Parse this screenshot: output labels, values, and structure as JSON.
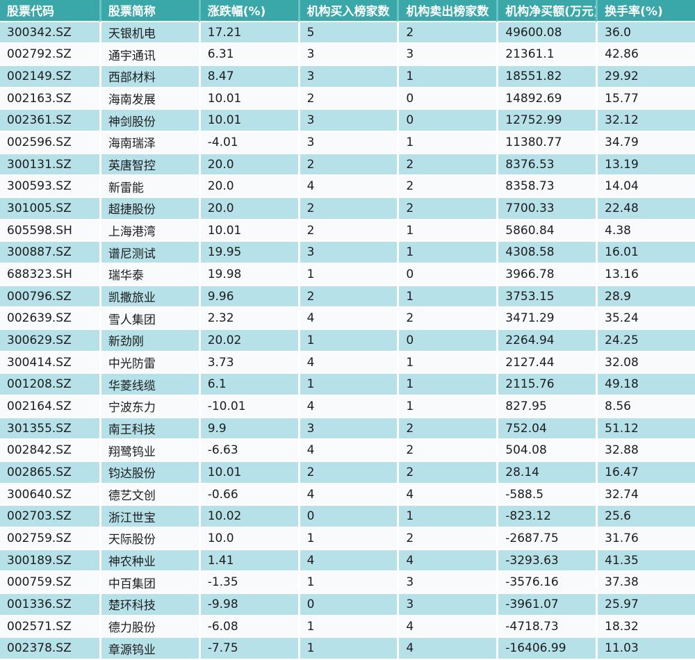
{
  "colors": {
    "header_bg": "#3aa7a8",
    "header_divider": "#6ec3c3",
    "row_alt_cyan": "#b6e1e9",
    "row_main_white": "#f8fafb",
    "separator": "#ffffff",
    "body_text": "#1c1c1c",
    "header_text": "#ffffff"
  },
  "chart_data": {
    "type": "table",
    "title": "",
    "columns": [
      "股票代码",
      "股票简称",
      "涨跌幅(%)",
      "机构买入榜家数",
      "机构卖出榜家数",
      "机构净买额(万元)",
      "换手率(%)"
    ],
    "rows": [
      [
        "300342.SZ",
        "天银机电",
        "17.21",
        "5",
        "2",
        "49600.08",
        "36.0"
      ],
      [
        "002792.SZ",
        "通宇通讯",
        "6.31",
        "3",
        "3",
        "21361.1",
        "42.86"
      ],
      [
        "002149.SZ",
        "西部材料",
        "8.47",
        "3",
        "1",
        "18551.82",
        "29.92"
      ],
      [
        "002163.SZ",
        "海南发展",
        "10.01",
        "2",
        "0",
        "14892.69",
        "15.77"
      ],
      [
        "002361.SZ",
        "神剑股份",
        "10.01",
        "3",
        "0",
        "12752.99",
        "32.12"
      ],
      [
        "002596.SZ",
        "海南瑞泽",
        "-4.01",
        "3",
        "1",
        "11380.77",
        "34.79"
      ],
      [
        "300131.SZ",
        "英唐智控",
        "20.0",
        "2",
        "2",
        "8376.53",
        "13.19"
      ],
      [
        "300593.SZ",
        "新雷能",
        "20.0",
        "4",
        "2",
        "8358.73",
        "14.04"
      ],
      [
        "301005.SZ",
        "超捷股份",
        "20.0",
        "2",
        "2",
        "7700.33",
        "22.48"
      ],
      [
        "605598.SH",
        "上海港湾",
        "10.01",
        "2",
        "1",
        "5860.84",
        "4.38"
      ],
      [
        "300887.SZ",
        "谱尼测试",
        "19.95",
        "3",
        "1",
        "4308.58",
        "16.01"
      ],
      [
        "688323.SH",
        "瑞华泰",
        "19.98",
        "1",
        "0",
        "3966.78",
        "13.16"
      ],
      [
        "000796.SZ",
        "凯撒旅业",
        "9.96",
        "2",
        "1",
        "3753.15",
        "28.9"
      ],
      [
        "002639.SZ",
        "雪人集团",
        "2.32",
        "4",
        "2",
        "3471.29",
        "35.24"
      ],
      [
        "300629.SZ",
        "新劲刚",
        "20.02",
        "1",
        "0",
        "2264.94",
        "24.25"
      ],
      [
        "300414.SZ",
        "中光防雷",
        "3.73",
        "4",
        "1",
        "2127.44",
        "32.08"
      ],
      [
        "001208.SZ",
        "华菱线缆",
        "6.1",
        "1",
        "1",
        "2115.76",
        "49.18"
      ],
      [
        "002164.SZ",
        "宁波东力",
        "-10.01",
        "4",
        "1",
        "827.95",
        "8.56"
      ],
      [
        "301355.SZ",
        "南王科技",
        "9.9",
        "3",
        "2",
        "752.04",
        "51.12"
      ],
      [
        "002842.SZ",
        "翔鹭钨业",
        "-6.63",
        "4",
        "2",
        "504.08",
        "32.88"
      ],
      [
        "002865.SZ",
        "钧达股份",
        "10.01",
        "2",
        "2",
        "28.14",
        "16.47"
      ],
      [
        "300640.SZ",
        "德艺文创",
        "-0.66",
        "4",
        "4",
        "-588.5",
        "32.74"
      ],
      [
        "002703.SZ",
        "浙江世宝",
        "10.02",
        "0",
        "1",
        "-823.12",
        "25.6"
      ],
      [
        "002759.SZ",
        "天际股份",
        "10.0",
        "1",
        "2",
        "-2687.75",
        "31.76"
      ],
      [
        "300189.SZ",
        "神农种业",
        "1.41",
        "4",
        "4",
        "-3293.63",
        "41.35"
      ],
      [
        "000759.SZ",
        "中百集团",
        "-1.35",
        "1",
        "3",
        "-3576.16",
        "37.38"
      ],
      [
        "001336.SZ",
        "楚环科技",
        "-9.98",
        "0",
        "3",
        "-3961.07",
        "25.97"
      ],
      [
        "002571.SZ",
        "德力股份",
        "-6.08",
        "1",
        "4",
        "-4718.73",
        "18.32"
      ],
      [
        "002378.SZ",
        "章源钨业",
        "-7.75",
        "1",
        "4",
        "-16406.99",
        "11.03"
      ]
    ]
  }
}
